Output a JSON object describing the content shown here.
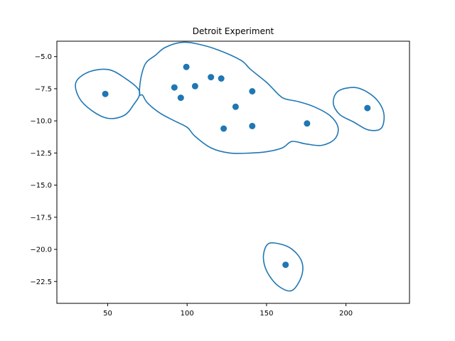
{
  "chart_data": {
    "type": "scatter",
    "title": "Detroit Experiment",
    "xlabel": "",
    "ylabel": "",
    "xlim": [
      18,
      240
    ],
    "ylim": [
      -24.2,
      -3.8
    ],
    "xticks": [
      50,
      100,
      150,
      200
    ],
    "yticks": [
      -5.0,
      -7.5,
      -10.0,
      -12.5,
      -15.0,
      -17.5,
      -20.0,
      -22.5
    ],
    "xtick_labels": [
      "50",
      "100",
      "150",
      "200"
    ],
    "ytick_labels": [
      "−5.0",
      "−7.5",
      "−10.0",
      "−12.5",
      "−15.0",
      "−17.5",
      "−20.0",
      "−22.5"
    ],
    "grid": false,
    "color": "#1f77b4",
    "points": [
      {
        "x": 48.5,
        "y": -7.9
      },
      {
        "x": 92.0,
        "y": -7.4
      },
      {
        "x": 96.0,
        "y": -8.2
      },
      {
        "x": 99.5,
        "y": -5.8
      },
      {
        "x": 105.0,
        "y": -7.3
      },
      {
        "x": 115.0,
        "y": -6.6
      },
      {
        "x": 121.5,
        "y": -6.7
      },
      {
        "x": 123.0,
        "y": -10.6
      },
      {
        "x": 130.5,
        "y": -8.9
      },
      {
        "x": 141.0,
        "y": -7.7
      },
      {
        "x": 141.0,
        "y": -10.4
      },
      {
        "x": 175.5,
        "y": -10.2
      },
      {
        "x": 162.0,
        "y": -21.2
      },
      {
        "x": 213.5,
        "y": -9.0
      }
    ],
    "contours": [
      [
        [
          70,
          -7.7
        ],
        [
          60,
          -6.6
        ],
        [
          50,
          -6.0
        ],
        [
          38,
          -6.2
        ],
        [
          30,
          -7.0
        ],
        [
          32,
          -8.2
        ],
        [
          40,
          -9.2
        ],
        [
          50,
          -9.8
        ],
        [
          60,
          -9.6
        ],
        [
          66,
          -8.8
        ],
        [
          70,
          -7.7
        ]
      ],
      [
        [
          70,
          -7.9
        ],
        [
          71,
          -6.6
        ],
        [
          74,
          -5.5
        ],
        [
          80,
          -4.9
        ],
        [
          86,
          -4.3
        ],
        [
          96,
          -3.9
        ],
        [
          106,
          -4.0
        ],
        [
          120,
          -4.5
        ],
        [
          134,
          -5.3
        ],
        [
          140,
          -6.0
        ],
        [
          150,
          -7.0
        ],
        [
          158,
          -8.0
        ],
        [
          162,
          -8.3
        ],
        [
          170,
          -8.5
        ],
        [
          180,
          -8.9
        ],
        [
          190,
          -9.6
        ],
        [
          195,
          -10.5
        ],
        [
          193,
          -11.4
        ],
        [
          185,
          -11.9
        ],
        [
          175,
          -11.8
        ],
        [
          166,
          -11.6
        ],
        [
          160,
          -12.1
        ],
        [
          150,
          -12.4
        ],
        [
          140,
          -12.5
        ],
        [
          127,
          -12.5
        ],
        [
          115,
          -12.1
        ],
        [
          105,
          -11.2
        ],
        [
          100,
          -10.5
        ],
        [
          92,
          -10.0
        ],
        [
          83,
          -9.4
        ],
        [
          75,
          -8.6
        ],
        [
          72,
          -8.0
        ],
        [
          70,
          -7.9
        ]
      ],
      [
        [
          205,
          -7.4
        ],
        [
          214,
          -7.8
        ],
        [
          221,
          -8.6
        ],
        [
          224,
          -9.6
        ],
        [
          222,
          -10.6
        ],
        [
          214,
          -10.7
        ],
        [
          205,
          -10.1
        ],
        [
          196,
          -9.5
        ],
        [
          192,
          -8.6
        ],
        [
          195,
          -7.7
        ],
        [
          205,
          -7.4
        ]
      ],
      [
        [
          155,
          -19.5
        ],
        [
          165,
          -19.9
        ],
        [
          172,
          -20.9
        ],
        [
          172,
          -22.1
        ],
        [
          166,
          -23.2
        ],
        [
          158,
          -22.9
        ],
        [
          151,
          -21.9
        ],
        [
          148,
          -20.7
        ],
        [
          150,
          -19.7
        ],
        [
          155,
          -19.5
        ]
      ]
    ]
  }
}
